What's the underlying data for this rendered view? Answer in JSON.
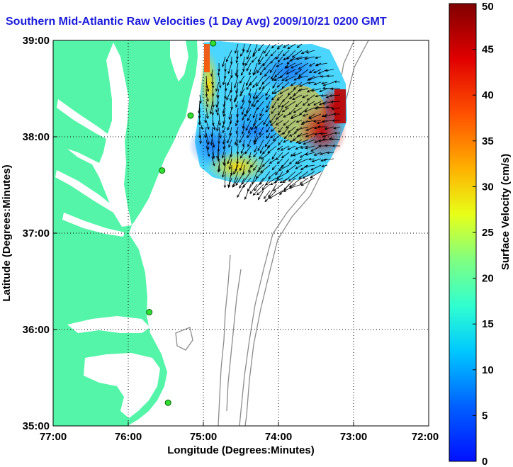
{
  "title": "Southern Mid-Atlantic Raw Velocities (1 Day Avg) 2009/10/21 0200 GMT",
  "map": {
    "x_axis_title": "Longitude (Degrees:Minutes)",
    "y_axis_title": "Latitude (Degrees:Minutes)",
    "x_ticks": [
      "77:00",
      "76:00",
      "75:00",
      "74:00",
      "73:00",
      "72:00"
    ],
    "y_ticks": [
      "39:00",
      "38:00",
      "37:00",
      "36:00",
      "35:00"
    ],
    "lon_range": [
      -77,
      -72
    ],
    "lat_range": [
      35,
      39
    ],
    "land_color": "#55f5a9",
    "water_color": "#ffffff",
    "grid": "dotted"
  },
  "colorbar": {
    "label": "Surface Velocity (cm/s)",
    "min": 0,
    "max": 50,
    "ticks": [
      "0",
      "5",
      "10",
      "15",
      "20",
      "25",
      "30",
      "35",
      "40",
      "45",
      "50"
    ]
  },
  "stations": [
    {
      "lon": -74.87,
      "lat": 38.97
    },
    {
      "lon": -75.17,
      "lat": 38.22
    },
    {
      "lon": -75.55,
      "lat": 37.65
    },
    {
      "lon": -75.72,
      "lat": 36.18
    },
    {
      "lon": -75.47,
      "lat": 35.24
    }
  ]
}
